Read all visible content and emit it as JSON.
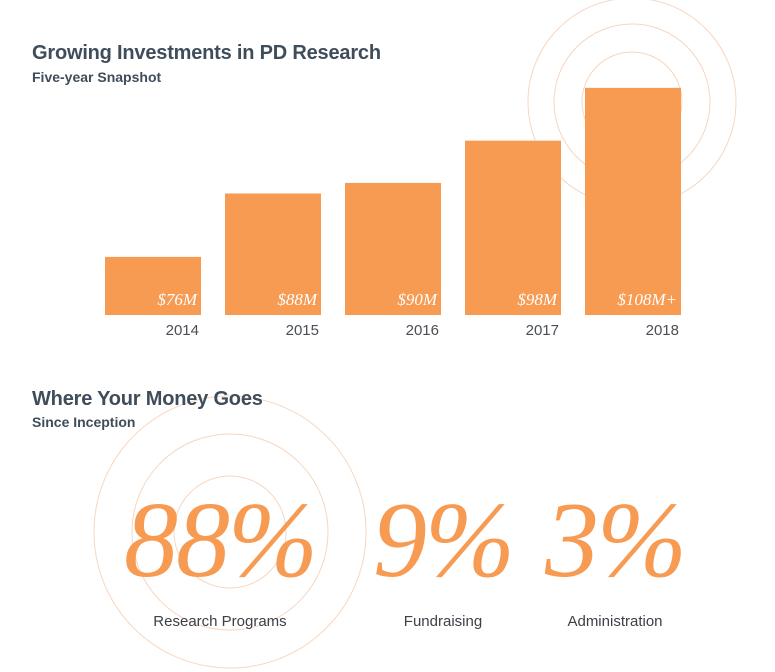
{
  "colors": {
    "accent": "#f79a52",
    "ring": "#f7d6bf",
    "heading": "#3f4d5a",
    "bar_label": "#ffffff"
  },
  "chart_data": {
    "type": "bar",
    "title": "Growing Investments in PD Research",
    "subtitle": "Five-year Snapshot",
    "categories": [
      "2014",
      "2015",
      "2016",
      "2017",
      "2018"
    ],
    "values": [
      76,
      88,
      90,
      98,
      108
    ],
    "data_labels": [
      "$76M",
      "$88M",
      "$90M",
      "$98M",
      "$108M+"
    ],
    "ylim": [
      65,
      111
    ],
    "grid": false,
    "legend": "none"
  },
  "allocation": {
    "title": "Where Your Money Goes",
    "subtitle": "Since Inception",
    "items": [
      {
        "percent": "88%",
        "label": "Research Programs",
        "value": 88
      },
      {
        "percent": "9%",
        "label": "Fundraising",
        "value": 9
      },
      {
        "percent": "3%",
        "label": "Administration",
        "value": 3
      }
    ]
  }
}
